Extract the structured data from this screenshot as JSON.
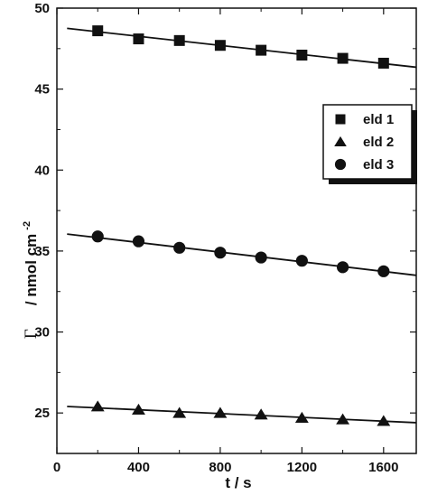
{
  "chart_data": {
    "type": "scatter",
    "xlabel": "t / s",
    "ylabel_symbol": "Γ",
    "ylabel_unit": "/ nmol cm",
    "ylabel_superscript": "-2",
    "xlim": [
      0,
      1760
    ],
    "ylim": [
      22.5,
      50
    ],
    "x_ticks": [
      0,
      400,
      800,
      1200,
      1600
    ],
    "y_ticks": [
      25,
      30,
      35,
      40,
      45,
      50
    ],
    "x": [
      200,
      400,
      600,
      800,
      1000,
      1200,
      1400,
      1600
    ],
    "series": [
      {
        "name": "eld 1",
        "marker": "square",
        "values": [
          48.6,
          48.1,
          48.0,
          47.7,
          47.4,
          47.1,
          46.9,
          46.6
        ],
        "fit": {
          "x": [
            50,
            1760
          ],
          "y": [
            48.75,
            46.35
          ]
        }
      },
      {
        "name": "eld 2",
        "marker": "triangle",
        "values": [
          25.4,
          25.2,
          25.0,
          25.0,
          24.9,
          24.7,
          24.6,
          24.5
        ],
        "fit": {
          "x": [
            50,
            1760
          ],
          "y": [
            25.4,
            24.4
          ]
        }
      },
      {
        "name": "eld 3",
        "marker": "circle",
        "values": [
          35.9,
          35.6,
          35.2,
          34.9,
          34.6,
          34.4,
          34.0,
          33.75
        ],
        "fit": {
          "x": [
            50,
            1760
          ],
          "y": [
            36.05,
            33.5
          ]
        }
      }
    ],
    "legend": "upper-right",
    "grid": false,
    "color": "#111111"
  }
}
